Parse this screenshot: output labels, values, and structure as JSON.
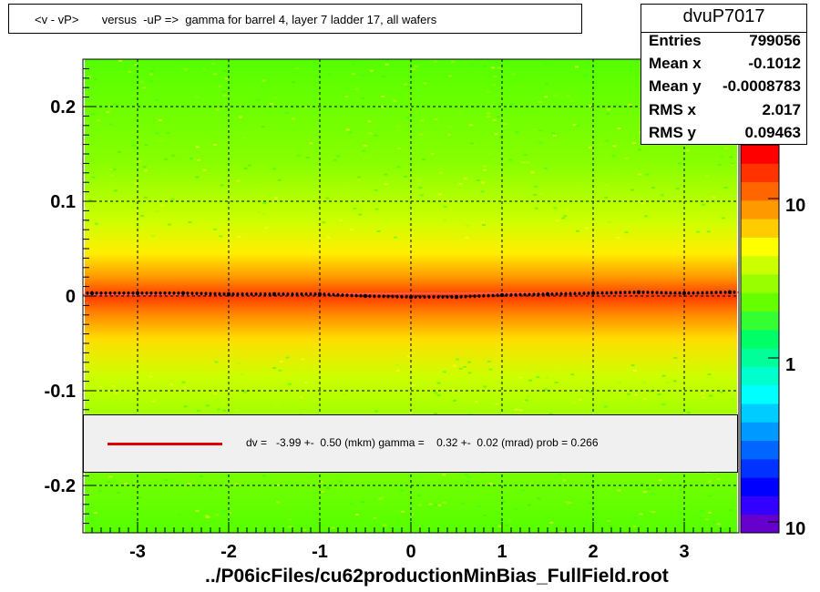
{
  "chart_data": {
    "type": "heatmap",
    "title": "<v - vP>       versus  -uP =>  gamma for barrel 4, layer 7 ladder 17, all wafers",
    "xlabel": "../P06icFiles/cu62productionMinBias_FullField.root",
    "ylabel": "",
    "xlim": [
      -3.6,
      3.6
    ],
    "ylim": [
      -0.25,
      0.25
    ],
    "x_ticks": [
      -3,
      -2,
      -1,
      0,
      1,
      2,
      3
    ],
    "x_tick_labels": [
      "-3",
      "-2",
      "-1",
      "0",
      "1",
      "2",
      "3"
    ],
    "y_ticks": [
      -0.2,
      -0.1,
      0,
      0.1,
      0.2
    ],
    "y_tick_labels": [
      "-0.2",
      "-0.1",
      "0",
      "0.1",
      "0.2"
    ],
    "grid": true,
    "colorbar": {
      "scale": "log",
      "tick_labels": [
        "10",
        "1",
        "10"
      ],
      "palette": [
        "#6600cc",
        "#3300ff",
        "#0000ff",
        "#0033ff",
        "#0066ff",
        "#0099ff",
        "#00ccff",
        "#00ffff",
        "#00ffcc",
        "#00ff99",
        "#00ff66",
        "#33ff33",
        "#66ff00",
        "#99ff00",
        "#ccff00",
        "#ffff00",
        "#ffcc00",
        "#ff9900",
        "#ff6600",
        "#ff3300",
        "#ff0000"
      ]
    },
    "profile_points": {
      "x": [
        -3.5,
        -3.0,
        -2.5,
        -2.0,
        -1.5,
        -1.0,
        -0.5,
        0.0,
        0.5,
        1.0,
        1.5,
        2.0,
        2.5,
        3.0,
        3.5
      ],
      "y": [
        0.003,
        0.003,
        0.003,
        0.002,
        0.002,
        0.002,
        0.0,
        -0.001,
        -0.001,
        0.001,
        0.002,
        0.003,
        0.004,
        0.003,
        0.004
      ]
    },
    "fit_line": {
      "x": [
        -3.6,
        3.6
      ],
      "y": [
        0.0015,
        0.0039
      ],
      "color": "#ff6060"
    }
  },
  "stats": {
    "name": "dvuP7017",
    "rows": [
      {
        "label": "Entries",
        "value": "799056"
      },
      {
        "label": "Mean x",
        "value": "-0.1012"
      },
      {
        "label": "Mean y",
        "value": "-0.0008783"
      },
      {
        "label": "RMS x",
        "value": "2.017"
      },
      {
        "label": "RMS y",
        "value": "0.09463"
      }
    ]
  },
  "fit_legend": {
    "text": "dv =   -3.99 +-  0.50 (mkm) gamma =    0.32 +-  0.02 (mrad) prob = 0.266",
    "line_color": "#e00000"
  }
}
